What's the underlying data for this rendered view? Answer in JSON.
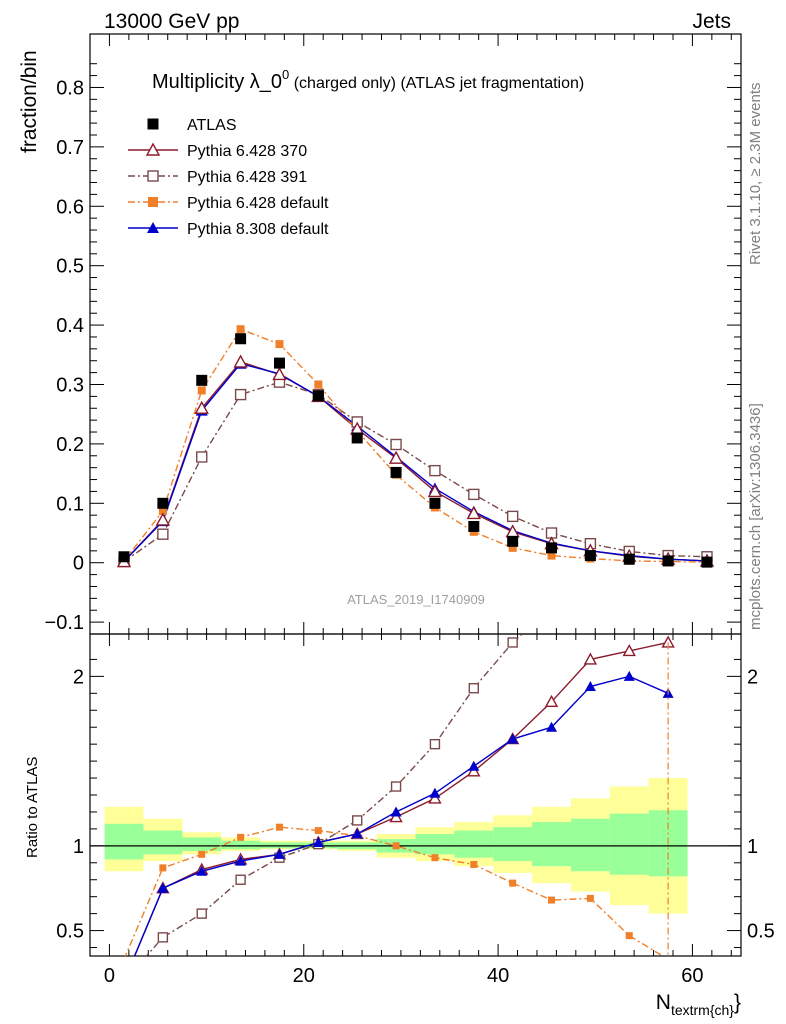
{
  "header": {
    "left": "13000 GeV pp",
    "right": "Jets"
  },
  "side_text": {
    "rivet": "Rivet 3.1.10, ≥ 2.3M events",
    "mcplots": "mcplots.cern.ch [arXiv:1306.3436]"
  },
  "chart_data": {
    "type": "line",
    "title": "Multiplicity λ_0",
    "title_sup": "0",
    "title_note": " (charged only) (ATLAS jet fragmentation)",
    "watermark": "ATLAS_2019_I1740909",
    "ylabel_main": "fraction/bin",
    "ylabel_ratio": "Ratio to ATLAS",
    "xlabel": "N",
    "xlabel_sub": "textrm{ch}",
    "xlabel_close": "}",
    "xlim": [
      -2,
      65
    ],
    "ylim_main": [
      -0.12,
      0.89
    ],
    "ylim_ratio": [
      0.35,
      2.25
    ],
    "x_ticks": [
      0,
      20,
      40,
      60
    ],
    "y_ticks_main": [
      -0.1,
      0,
      0.1,
      0.2,
      0.3,
      0.4,
      0.5,
      0.6,
      0.7,
      0.8
    ],
    "y_tick_labels_main": [
      "−0.1",
      "0",
      "0.1",
      "0.2",
      "0.3",
      "0.4",
      "0.5",
      "0.6",
      "0.7",
      "0.8"
    ],
    "y_ticks_ratio": [
      0.5,
      1,
      2
    ],
    "y_tick_labels_ratio": [
      "0.5",
      "1",
      "2"
    ],
    "x": [
      1.5,
      5.5,
      9.5,
      13.5,
      17.5,
      21.5,
      25.5,
      29.5,
      33.5,
      37.5,
      41.5,
      45.5,
      49.5,
      53.5,
      57.5,
      61.5
    ],
    "bin_edges": [
      -0.5,
      3.5,
      7.5,
      11.5,
      15.5,
      19.5,
      23.5,
      27.5,
      31.5,
      35.5,
      39.5,
      43.5,
      47.5,
      51.5,
      55.5,
      59.5
    ],
    "band_inner": [
      [
        0.92,
        1.13
      ],
      [
        0.95,
        1.09
      ],
      [
        0.97,
        1.05
      ],
      [
        0.98,
        1.03
      ],
      [
        0.985,
        1.02
      ],
      [
        0.985,
        1.02
      ],
      [
        0.98,
        1.02
      ],
      [
        0.96,
        1.04
      ],
      [
        0.95,
        1.07
      ],
      [
        0.93,
        1.09
      ],
      [
        0.91,
        1.11
      ],
      [
        0.88,
        1.14
      ],
      [
        0.85,
        1.16
      ],
      [
        0.83,
        1.19
      ],
      [
        0.82,
        1.21
      ]
    ],
    "band_outer": [
      [
        0.85,
        1.23
      ],
      [
        0.91,
        1.16
      ],
      [
        0.95,
        1.08
      ],
      [
        0.97,
        1.05
      ],
      [
        0.98,
        1.03
      ],
      [
        0.98,
        1.03
      ],
      [
        0.97,
        1.03
      ],
      [
        0.93,
        1.07
      ],
      [
        0.91,
        1.11
      ],
      [
        0.88,
        1.14
      ],
      [
        0.84,
        1.18
      ],
      [
        0.78,
        1.23
      ],
      [
        0.73,
        1.28
      ],
      [
        0.65,
        1.35
      ],
      [
        0.6,
        1.4
      ]
    ],
    "series": [
      {
        "name": "ATLAS",
        "color": "#000000",
        "marker": "square-filled",
        "values": [
          0.01,
          0.1,
          0.307,
          0.377,
          0.336,
          0.281,
          0.21,
          0.152,
          0.1,
          0.061,
          0.036,
          0.025,
          0.012,
          0.006,
          0.003,
          0.001
        ]
      },
      {
        "name": "Pythia 6.428 370",
        "color": "#8b1a2b",
        "marker": "triangle-open",
        "dash": "",
        "values": [
          0.002,
          0.072,
          0.26,
          0.338,
          0.317,
          0.28,
          0.225,
          0.176,
          0.12,
          0.083,
          0.052,
          0.032,
          0.02,
          0.011,
          0.006,
          0.003
        ],
        "ratio": [
          0.2,
          0.75,
          0.86,
          0.92,
          0.95,
          1.02,
          1.07,
          1.17,
          1.28,
          1.44,
          1.63,
          1.85,
          2.1,
          2.15,
          2.2
        ]
      },
      {
        "name": "Pythia 6.428 391",
        "color": "#7a4a4a",
        "marker": "square-open",
        "dash": "7,3,2,3",
        "values": [
          0.002,
          0.048,
          0.178,
          0.283,
          0.304,
          0.283,
          0.237,
          0.199,
          0.155,
          0.115,
          0.078,
          0.05,
          0.032,
          0.019,
          0.012,
          0.01
        ],
        "ratio": [
          0.2,
          0.46,
          0.6,
          0.8,
          0.93,
          1.01,
          1.15,
          1.35,
          1.6,
          1.93,
          2.2,
          2.4
        ]
      },
      {
        "name": "Pythia 6.428 default",
        "color": "#f07f2a",
        "marker": "square-filled",
        "dash": "7,3,2,3",
        "values": [
          0.003,
          0.087,
          0.29,
          0.393,
          0.368,
          0.3,
          0.222,
          0.148,
          0.093,
          0.052,
          0.025,
          0.012,
          0.007,
          0.003,
          0.002,
          0.001
        ],
        "ratio": [
          0.33,
          0.87,
          0.95,
          1.05,
          1.11,
          1.09,
          1.06,
          1.0,
          0.93,
          0.89,
          0.78,
          0.68,
          0.69,
          0.47,
          0.33
        ]
      },
      {
        "name": "Pythia 8.308 default",
        "color": "#0000cc",
        "marker": "triangle-filled",
        "dash": "",
        "values": [
          0.002,
          0.07,
          0.256,
          0.335,
          0.318,
          0.28,
          0.23,
          0.178,
          0.125,
          0.086,
          0.054,
          0.033,
          0.02,
          0.012,
          0.006,
          0.003
        ],
        "ratio": [
          0.2,
          0.75,
          0.85,
          0.91,
          0.95,
          1.02,
          1.07,
          1.2,
          1.31,
          1.47,
          1.63,
          1.7,
          1.94,
          2.0,
          1.9
        ]
      }
    ]
  }
}
